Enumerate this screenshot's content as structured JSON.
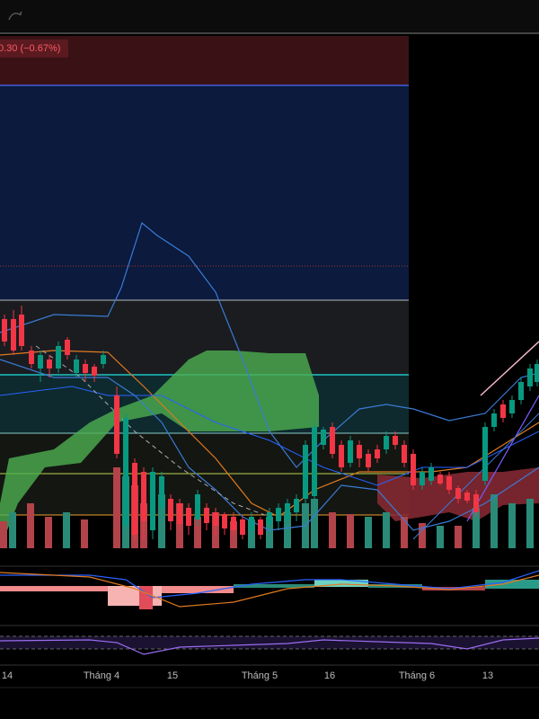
{
  "header": {
    "price_change": "0.30 (−0.67%)"
  },
  "time_axis": {
    "labels": [
      "14",
      "Tháng 4",
      "15",
      "Tháng 5",
      "16",
      "Tháng 6",
      "13"
    ]
  }
}
